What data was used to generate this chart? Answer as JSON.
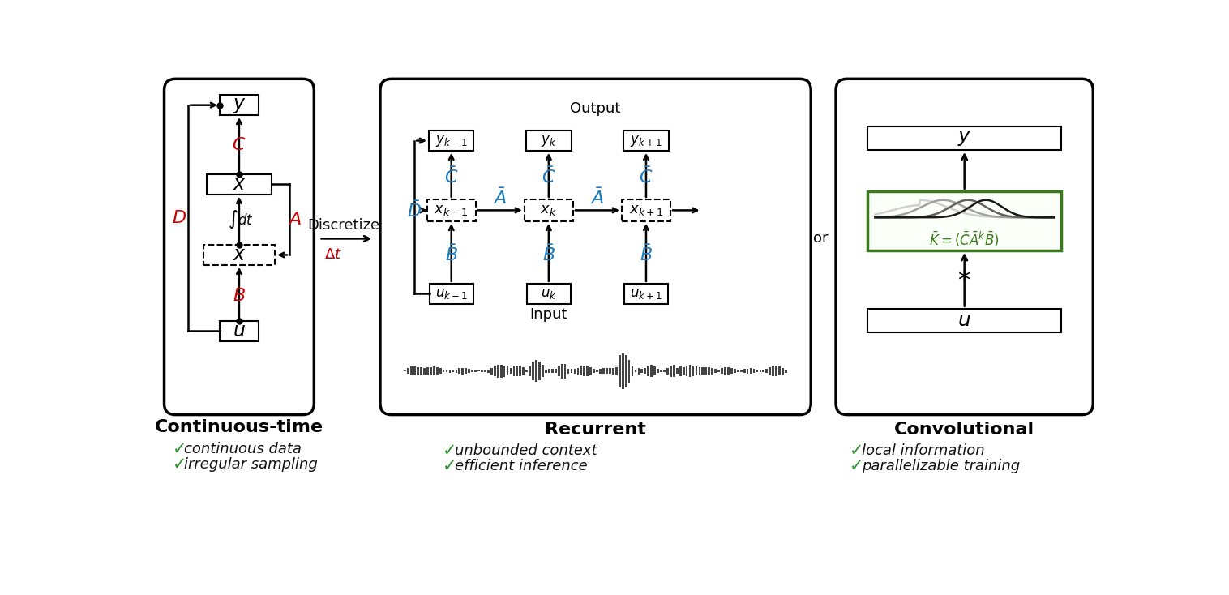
{
  "panel1_title": "Continuous-time",
  "panel2_title": "Recurrent",
  "panel3_title": "Convolutional",
  "panel1_checks": [
    "continuous data",
    "irregular sampling"
  ],
  "panel2_checks": [
    "unbounded context",
    "efficient inference"
  ],
  "panel3_checks": [
    "local information",
    "parallelizable training"
  ],
  "red_color": "#cc0000",
  "blue_color": "#1a7abf",
  "green_color": "#2a922a",
  "black_color": "#111111",
  "bg_color": "#ffffff",
  "discretize_label": "Discretize",
  "delta_t_label": "Δt",
  "or_label": "or",
  "output_label": "Output",
  "input_label": "Input"
}
